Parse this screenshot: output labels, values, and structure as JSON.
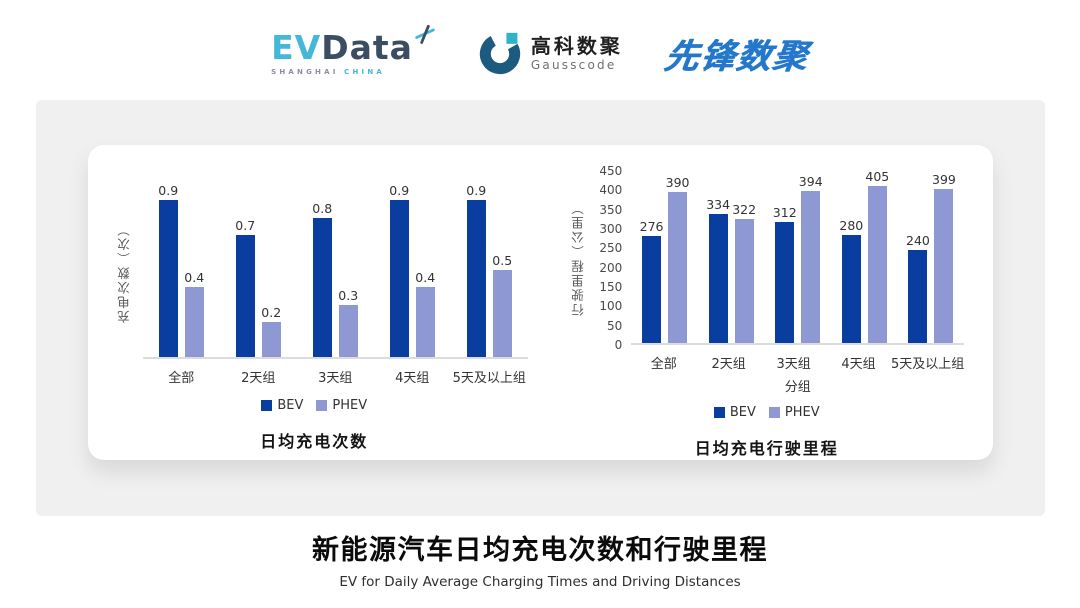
{
  "header": {
    "evdata": {
      "ev": "EV",
      "data": "Data",
      "sub_left": "SHANGHAI",
      "sub_right": "CHINA"
    },
    "gausscode": {
      "cn": "高科数聚",
      "en": "Gausscode"
    },
    "xianfeng": "先锋数聚"
  },
  "colors": {
    "bev": "#0a3da0",
    "phev": "#8e99d3",
    "series": [
      "#0a3da0",
      "#8e99d3"
    ],
    "baseline": "#dcdcdc",
    "panel_gray": "#f0f0f0",
    "evdata_cyan": "#45b8d9",
    "evdata_navy": "#3a4d63",
    "gauss_dark": "#1c5a80",
    "gauss_teal": "#2fb3c6",
    "xianfeng_blue": "#2478cc"
  },
  "icons": {
    "evdata_mark": "x-star-icon",
    "gausscode_mark": "g-circle-icon"
  },
  "chart_data": [
    {
      "type": "bar",
      "title": "日均充电次数",
      "xlabel": "",
      "ylabel": "充电次数（次）",
      "categories": [
        "全部",
        "2天组",
        "3天组",
        "4天组",
        "5天及以上组"
      ],
      "series": [
        {
          "name": "BEV",
          "values": [
            0.9,
            0.7,
            0.8,
            0.9,
            0.9
          ]
        },
        {
          "name": "PHEV",
          "values": [
            0.4,
            0.2,
            0.3,
            0.4,
            0.5
          ]
        }
      ],
      "ylim": [
        0,
        1.0
      ],
      "yticks": [],
      "value_labels": true,
      "grid": false,
      "legend_position": "bottom"
    },
    {
      "type": "bar",
      "title": "日均充电行驶里程",
      "xlabel": "分组",
      "ylabel": "行驶里程（公里）",
      "categories": [
        "全部",
        "2天组",
        "3天组",
        "4天组",
        "5天及以上组"
      ],
      "series": [
        {
          "name": "BEV",
          "values": [
            276,
            334,
            312,
            280,
            240
          ]
        },
        {
          "name": "PHEV",
          "values": [
            390,
            322,
            394,
            405,
            399
          ]
        }
      ],
      "ylim": [
        0,
        450
      ],
      "yticks": [
        0,
        50,
        100,
        150,
        200,
        250,
        300,
        350,
        400,
        450
      ],
      "value_labels": true,
      "grid": false,
      "legend_position": "bottom"
    }
  ],
  "footer": {
    "title": "新能源汽车日均充电次数和行驶里程",
    "subtitle": "EV for Daily Average Charging Times and Driving Distances"
  }
}
